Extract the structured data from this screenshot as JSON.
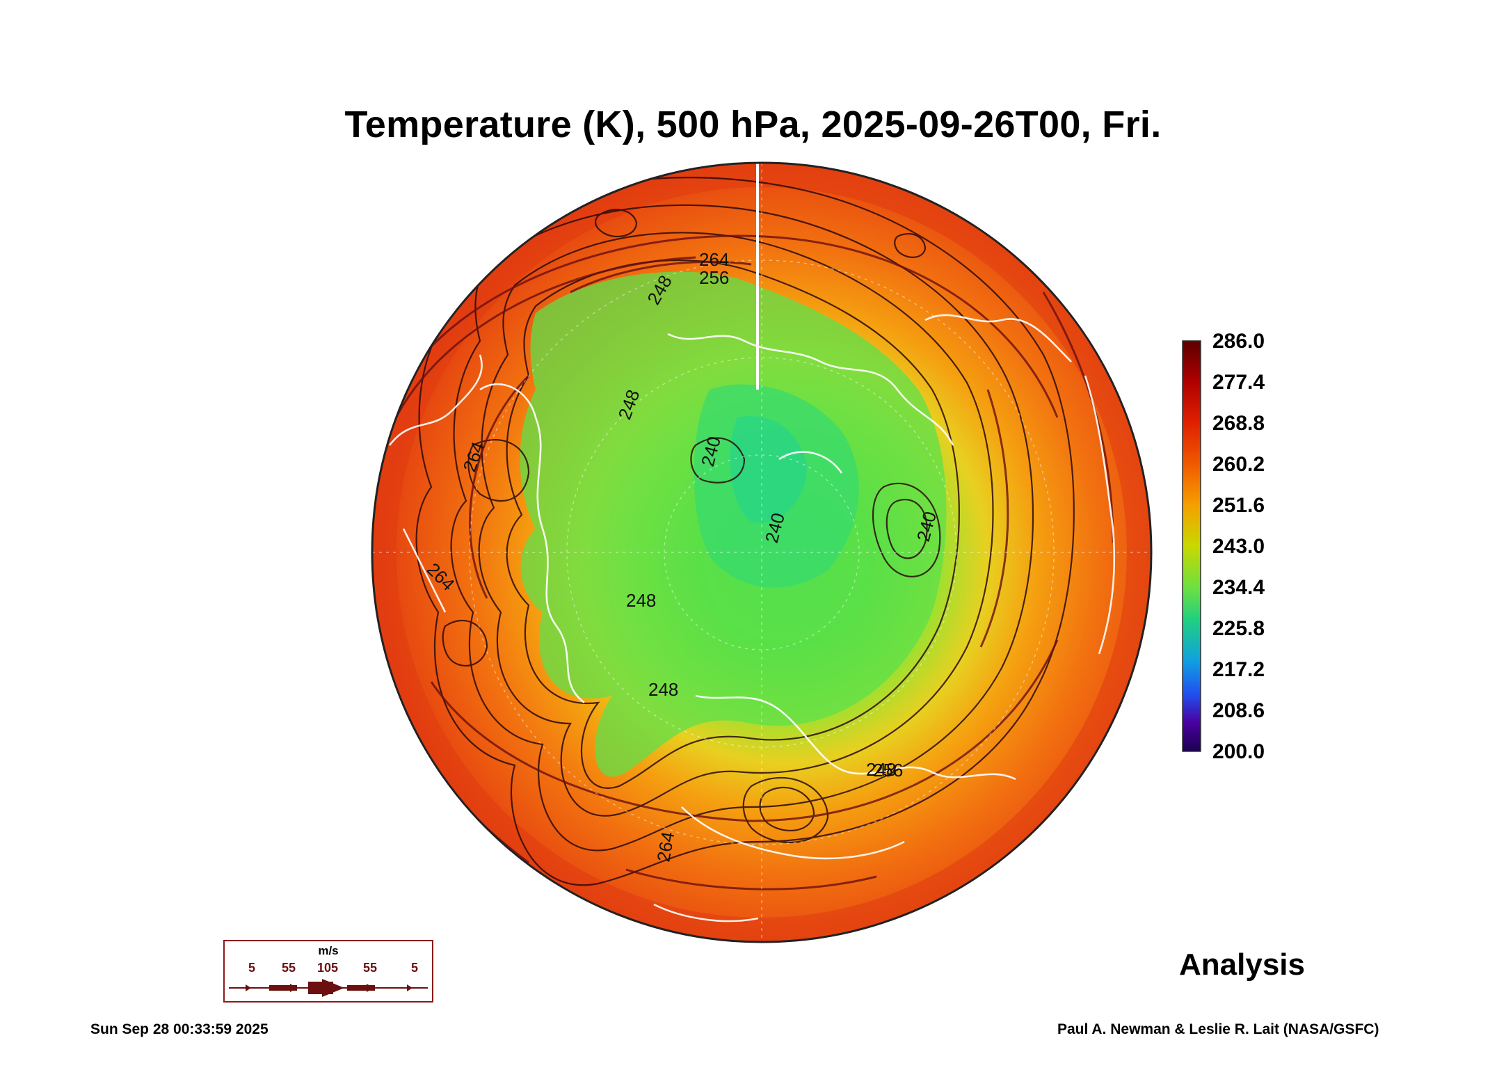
{
  "title": "Temperature (K), 500 hPa, 2025-09-26T00, Fri.",
  "run_type": "Analysis",
  "timestamp": "Sun Sep 28 00:33:59 2025",
  "credit": "Paul A. Newman & Leslie R. Lait (NASA/GSFC)",
  "colorbar": {
    "labels": [
      "286.0",
      "277.4",
      "268.8",
      "260.2",
      "251.6",
      "243.0",
      "234.4",
      "225.8",
      "217.2",
      "208.6",
      "200.0"
    ],
    "colors": [
      "#5c0000",
      "#b00000",
      "#e02000",
      "#f05a00",
      "#f5a000",
      "#c8d800",
      "#6ee040",
      "#20d080",
      "#10a0e0",
      "#2050f0",
      "#4a00a0",
      "#1a0050"
    ]
  },
  "wind_legend": {
    "unit": "m/s",
    "values": [
      "5",
      "55",
      "105",
      "55",
      "5"
    ]
  },
  "contour_labels": [
    "264",
    "256",
    "248",
    "248",
    "240",
    "240",
    "240",
    "248",
    "248",
    "248",
    "264",
    "264",
    "256",
    "264"
  ]
}
